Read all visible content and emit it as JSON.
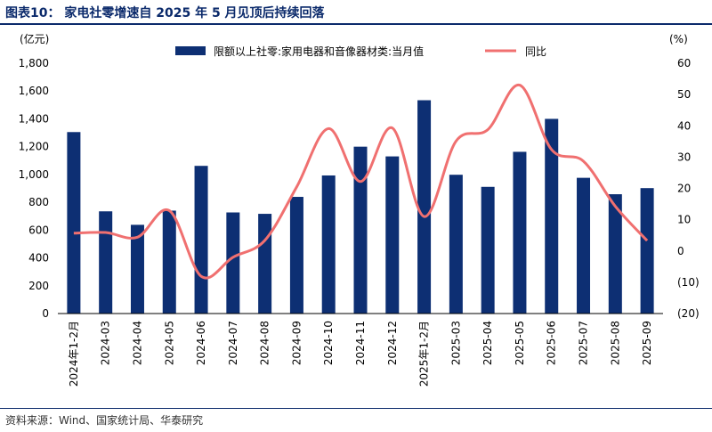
{
  "header": {
    "title": "图表10：  家电社零增速自 2025 年 5 月见顶后持续回落"
  },
  "footer": {
    "source": "资料来源：Wind、国家统计局、华泰研究"
  },
  "colors": {
    "bar": "#0d2f73",
    "line": "#f07070",
    "title": "#0b2a6b"
  },
  "chart_data": {
    "type": "bar+line",
    "categories": [
      "2024年1-2月",
      "2024-03",
      "2024-04",
      "2024-05",
      "2024-06",
      "2024-07",
      "2024-08",
      "2024-09",
      "2024-10",
      "2024-11",
      "2024-12",
      "2025年1-2月",
      "2025-03",
      "2025-04",
      "2025-05",
      "2025-06",
      "2025-07",
      "2025-08",
      "2025-09"
    ],
    "series": [
      {
        "name": "限额以上社零:家用电器和音像器材类:当月值",
        "type": "bar",
        "axis": "left",
        "values": [
          1305,
          735,
          638,
          740,
          1062,
          727,
          717,
          839,
          993,
          1200,
          1130,
          1534,
          998,
          911,
          1163,
          1400,
          976,
          858,
          902
        ]
      },
      {
        "name": "同比",
        "type": "line",
        "axis": "right",
        "values": [
          5.7,
          5.9,
          4.4,
          12.9,
          -8.1,
          -2.0,
          3.4,
          20.5,
          39.1,
          22.2,
          39.3,
          11.0,
          35.1,
          38.8,
          53.0,
          32.4,
          28.7,
          14.3,
          3.3
        ]
      }
    ],
    "y_left": {
      "label": "(亿元)",
      "ylim": [
        0,
        1800
      ],
      "ticks": [
        "0",
        "200",
        "400",
        "600",
        "800",
        "1,000",
        "1,200",
        "1,400",
        "1,600",
        "1,800"
      ]
    },
    "y_right": {
      "label": "(%)",
      "ylim": [
        -20,
        60
      ],
      "ticks": [
        "(20)",
        "(10)",
        "0",
        "10",
        "20",
        "30",
        "40",
        "50",
        "60"
      ]
    },
    "legend": {
      "placement": "top-center"
    }
  }
}
